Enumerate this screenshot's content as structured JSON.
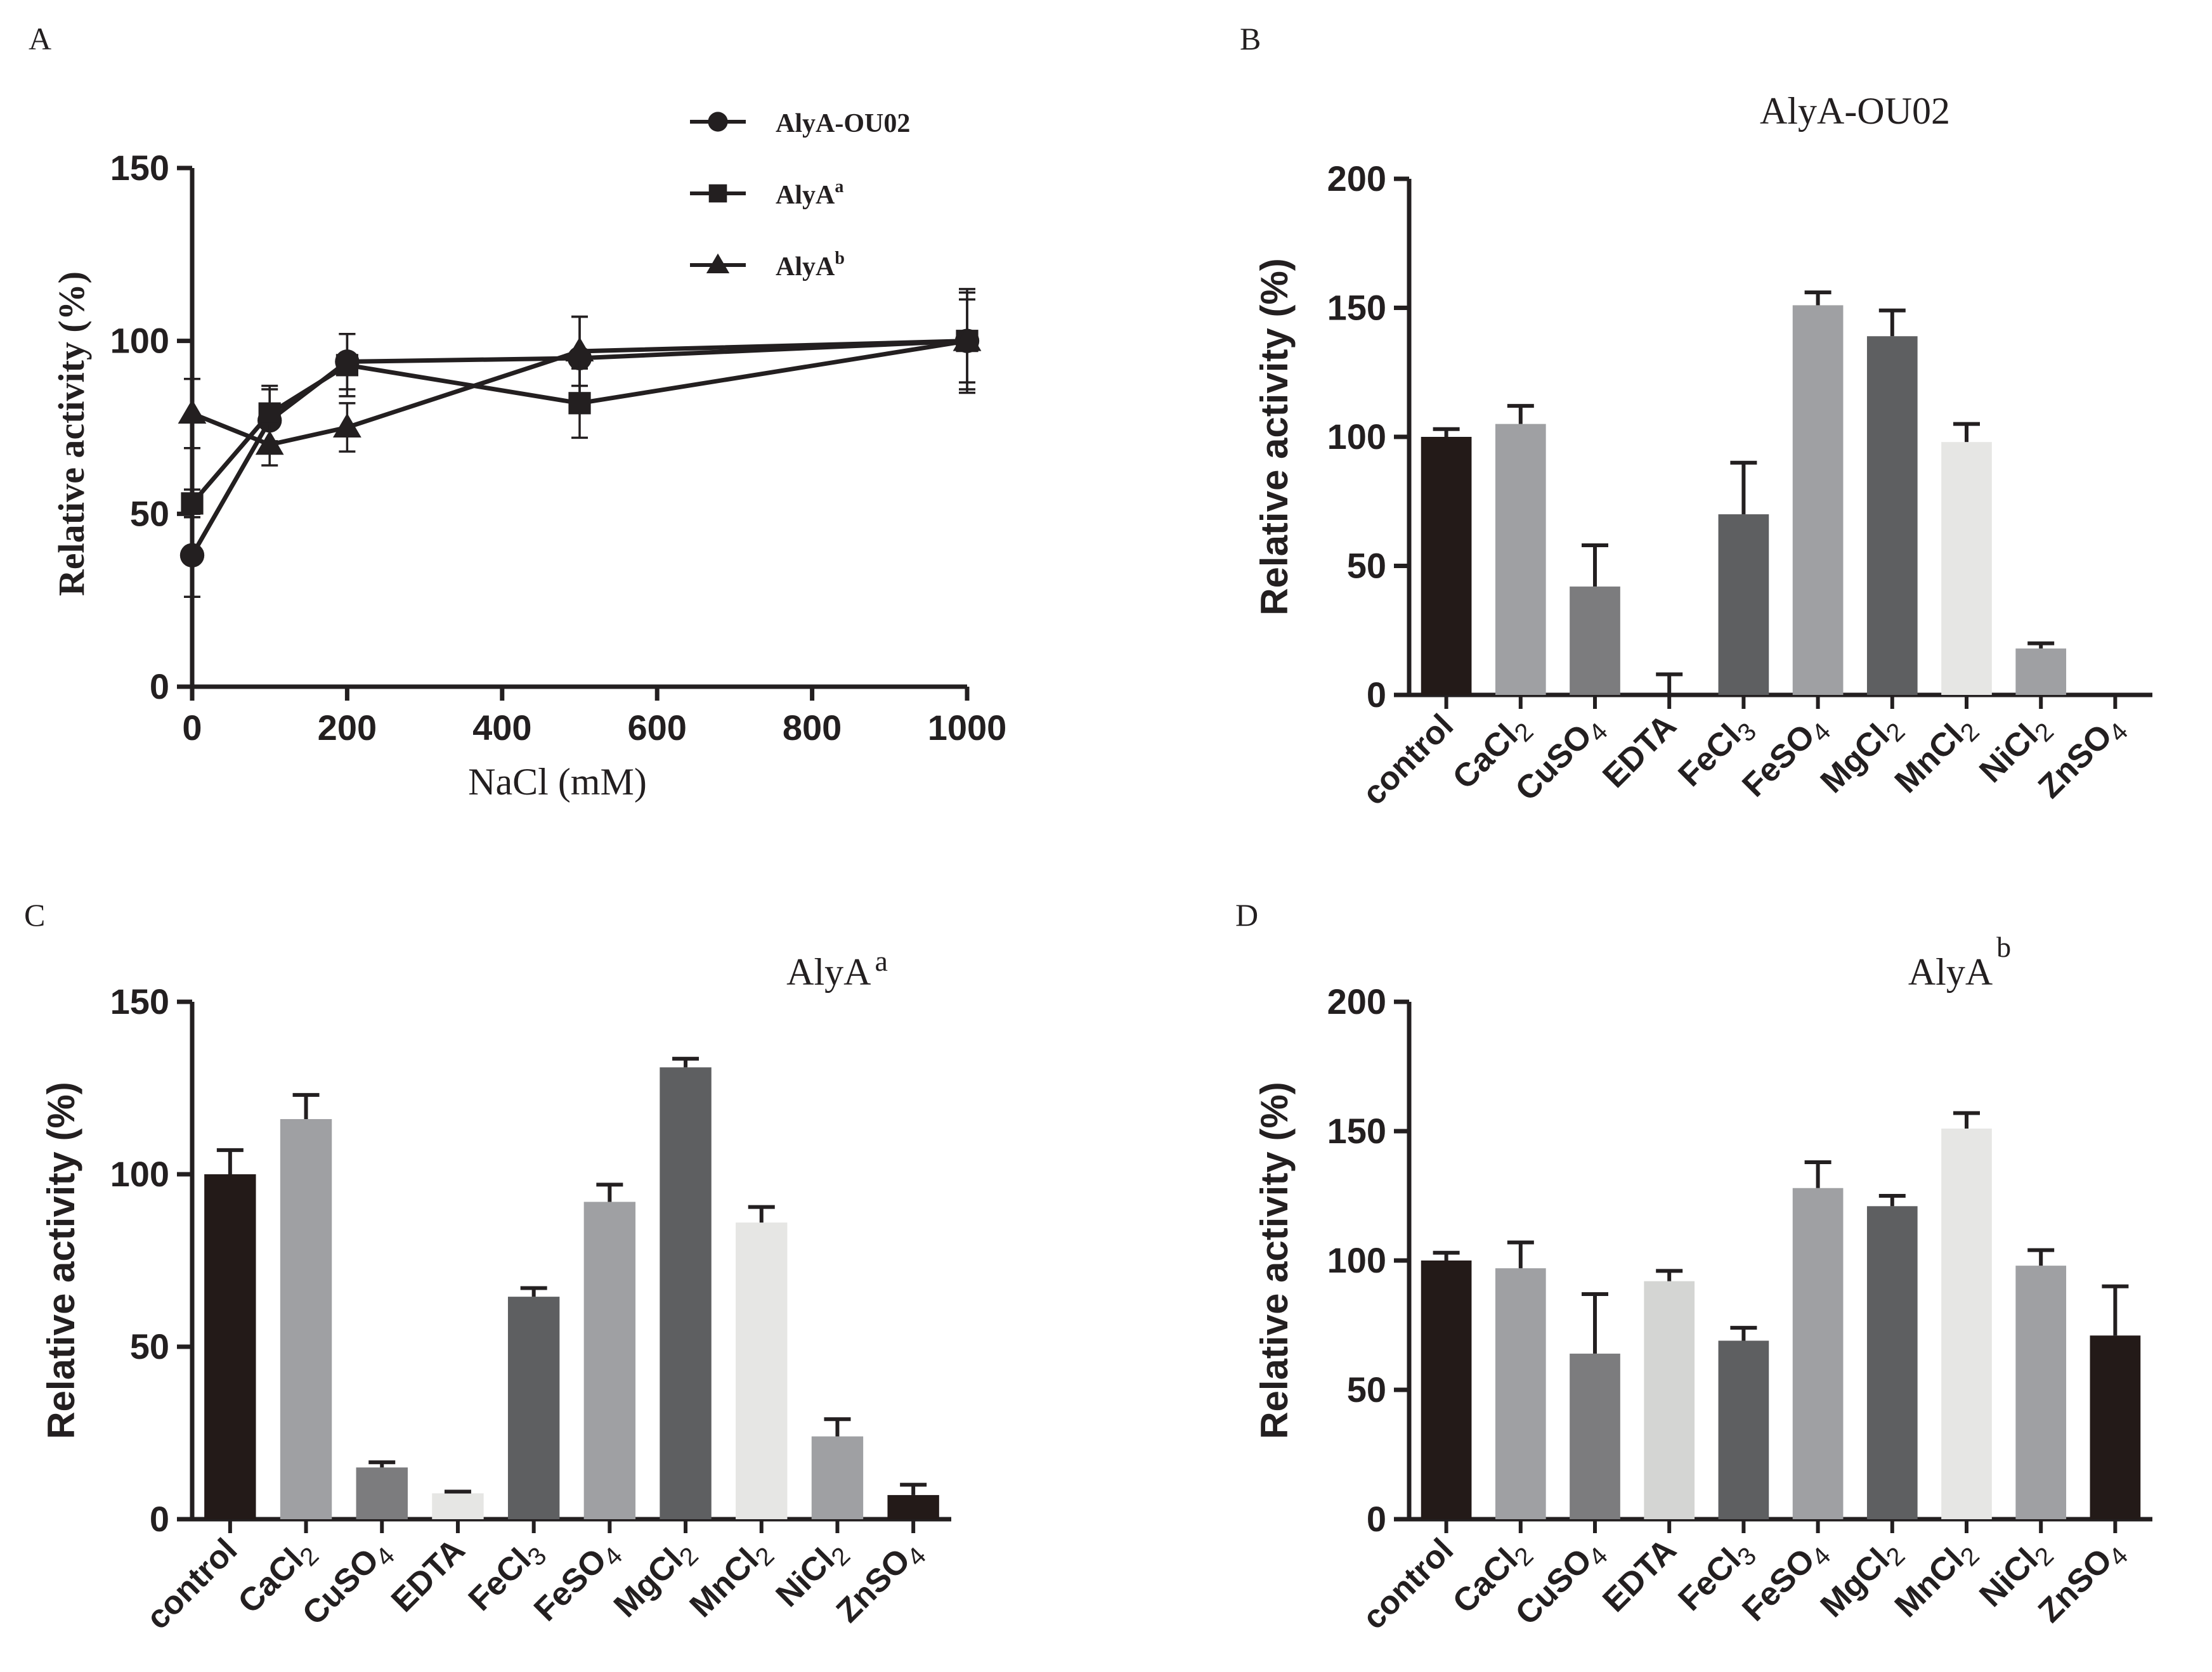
{
  "panel_labels": {
    "A": "A",
    "B": "B",
    "C": "C",
    "D": "D"
  },
  "colors": {
    "black": "#231a18",
    "gray_light": "#9fa0a3",
    "gray_mid": "#7c7c7e",
    "gray_dark": "#5e5f61",
    "very_light": "#e6e6e4",
    "light": "#d4d5d3",
    "axis": "#231f20"
  },
  "chart_data": [
    {
      "panel": "A",
      "type": "line",
      "title": "",
      "xlabel": "NaCl (mM)",
      "ylabel": "Relative activity (%)",
      "xlim": [
        0,
        1000
      ],
      "ylim": [
        0,
        150
      ],
      "xticks": [
        0,
        200,
        400,
        600,
        800,
        1000
      ],
      "yticks": [
        0,
        50,
        100,
        150
      ],
      "legend_position": "top-right",
      "x": [
        0,
        100,
        200,
        500,
        1000
      ],
      "series": [
        {
          "name": "AlyA-OU02",
          "base": "AlyA-OU02",
          "sup": "",
          "marker": "circle",
          "values": [
            38,
            77,
            94,
            95,
            100
          ],
          "errors": [
            12,
            9,
            8,
            12,
            15
          ]
        },
        {
          "name": "AlyA^a",
          "base": "AlyA",
          "sup": "a",
          "marker": "square",
          "values": [
            53,
            79,
            93,
            82,
            100
          ],
          "errors": [
            4,
            8,
            9,
            10,
            12
          ]
        },
        {
          "name": "AlyA^b",
          "base": "AlyA",
          "sup": "b",
          "marker": "triangle",
          "values": [
            79,
            70,
            75,
            97,
            100
          ],
          "errors": [
            10,
            6,
            7,
            10,
            14
          ]
        }
      ]
    },
    {
      "panel": "B",
      "type": "bar",
      "title": "AlyA-OU02",
      "title_base": "AlyA-OU02",
      "title_sup": "",
      "xlabel": "",
      "ylabel": "Relative activity (%)",
      "ylim": [
        0,
        200
      ],
      "yticks": [
        0,
        50,
        100,
        150,
        200
      ],
      "categories": [
        "control",
        "CaCl2",
        "CuSO4",
        "EDTA",
        "FeCl3",
        "FeSO4",
        "MgCl2",
        "MnCl2",
        "NiCl2",
        "ZnSO4"
      ],
      "category_labels": [
        {
          "base": "control",
          "sub": ""
        },
        {
          "base": "CaCl",
          "sub": "2"
        },
        {
          "base": "CuSO",
          "sub": "4"
        },
        {
          "base": "EDTA",
          "sub": ""
        },
        {
          "base": "FeCl",
          "sub": "3"
        },
        {
          "base": "FeSO",
          "sub": "4"
        },
        {
          "base": "MgCl",
          "sub": "2"
        },
        {
          "base": "MnCl",
          "sub": "2"
        },
        {
          "base": "NiCl",
          "sub": "2"
        },
        {
          "base": "ZnSO",
          "sub": "4"
        }
      ],
      "values": [
        100,
        105,
        42,
        0,
        70,
        151,
        139,
        98,
        18,
        0
      ],
      "errors": [
        3,
        7,
        16,
        8,
        20,
        5,
        10,
        7,
        2,
        0
      ],
      "bar_colors": [
        "#231a18",
        "#9fa0a3",
        "#7c7c7e",
        "#d4d5d3",
        "#5e5f61",
        "#9fa0a3",
        "#5e5f61",
        "#e6e6e4",
        "#9fa0a3",
        "#231a18"
      ]
    },
    {
      "panel": "C",
      "type": "bar",
      "title": "AlyA^a",
      "title_base": "AlyA",
      "title_sup": "a",
      "xlabel": "",
      "ylabel": "Relative activity (%)",
      "ylim": [
        0,
        150
      ],
      "yticks": [
        0,
        50,
        100,
        150
      ],
      "categories": [
        "control",
        "CaCl2",
        "CuSO4",
        "EDTA",
        "FeCl3",
        "FeSO4",
        "MgCl2",
        "MnCl2",
        "NiCl2",
        "ZnSO4"
      ],
      "category_labels": [
        {
          "base": "control",
          "sub": ""
        },
        {
          "base": "CaCl",
          "sub": "2"
        },
        {
          "base": "CuSO",
          "sub": "4"
        },
        {
          "base": "EDTA",
          "sub": ""
        },
        {
          "base": "FeCl",
          "sub": "3"
        },
        {
          "base": "FeSO",
          "sub": "4"
        },
        {
          "base": "MgCl",
          "sub": "2"
        },
        {
          "base": "MnCl",
          "sub": "2"
        },
        {
          "base": "NiCl",
          "sub": "2"
        },
        {
          "base": "ZnSO",
          "sub": "4"
        }
      ],
      "values": [
        100,
        116,
        15,
        7.5,
        64.5,
        92,
        131,
        86,
        24,
        7
      ],
      "errors": [
        7,
        7,
        1.5,
        0.5,
        2.5,
        5,
        2.5,
        4.5,
        5,
        3
      ],
      "bar_colors": [
        "#231a18",
        "#9fa0a3",
        "#7c7c7e",
        "#e6e6e4",
        "#5e5f61",
        "#9fa0a3",
        "#5e5f61",
        "#e6e6e4",
        "#9fa0a3",
        "#231a18"
      ]
    },
    {
      "panel": "D",
      "type": "bar",
      "title": "AlyA^b",
      "title_base": "AlyA",
      "title_sup": "b",
      "xlabel": "",
      "ylabel": "Relative activity (%)",
      "ylim": [
        0,
        200
      ],
      "yticks": [
        0,
        50,
        100,
        150,
        200
      ],
      "categories": [
        "control",
        "CaCl2",
        "CuSO4",
        "EDTA",
        "FeCl3",
        "FeSO4",
        "MgCl2",
        "MnCl2",
        "NiCl2",
        "ZnSO4"
      ],
      "category_labels": [
        {
          "base": "control",
          "sub": ""
        },
        {
          "base": "CaCl",
          "sub": "2"
        },
        {
          "base": "CuSO",
          "sub": "4"
        },
        {
          "base": "EDTA",
          "sub": ""
        },
        {
          "base": "FeCl",
          "sub": "3"
        },
        {
          "base": "FeSO",
          "sub": "4"
        },
        {
          "base": "MgCl",
          "sub": "2"
        },
        {
          "base": "MnCl",
          "sub": "2"
        },
        {
          "base": "NiCl",
          "sub": "2"
        },
        {
          "base": "ZnSO",
          "sub": "4"
        }
      ],
      "values": [
        100,
        97,
        64,
        92,
        69,
        128,
        121,
        151,
        98,
        71
      ],
      "errors": [
        3,
        10,
        23,
        4,
        5,
        10,
        4,
        6,
        6,
        19
      ],
      "bar_colors": [
        "#231a18",
        "#9fa0a3",
        "#7c7c7e",
        "#d4d5d3",
        "#5e5f61",
        "#9fa0a3",
        "#5e5f61",
        "#e6e6e4",
        "#9fa0a3",
        "#231a18"
      ]
    }
  ]
}
